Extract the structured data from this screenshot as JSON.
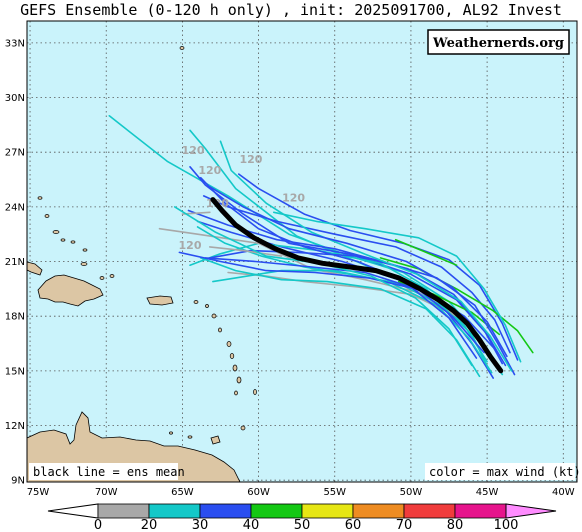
{
  "title": "GEFS Ensemble (0-120 h only) , init: 2025091700, AL92 Invest",
  "watermark": "Weathernerds.org",
  "legend_left": "black line = ens mean",
  "legend_right": "color = max wind (kt)",
  "lat_labels": [
    "33N",
    "30N",
    "27N",
    "24N",
    "21N",
    "18N",
    "15N",
    "12N",
    "9N"
  ],
  "lon_labels": [
    "75W",
    "70W",
    "65W",
    "60W",
    "55W",
    "50W",
    "45W",
    "40W"
  ],
  "colorbar": {
    "ticks": [
      "0",
      "20",
      "30",
      "40",
      "50",
      "60",
      "70",
      "80",
      "100"
    ],
    "colors": [
      "#a8a8a8",
      "#14c8c8",
      "#2a4ef0",
      "#14c814",
      "#e6e614",
      "#ee8c22",
      "#f03c3c",
      "#e6148c",
      "#ff8cff"
    ]
  },
  "hour_labels": [
    "120",
    "120",
    "120",
    "120",
    "120",
    "120"
  ],
  "map_colors": {
    "ocean": "#caf3fb",
    "land": "#dcc6a4",
    "mean_track": "#000000"
  },
  "ensemble_mean_track": [
    [
      -44.1,
      15.0
    ],
    [
      -44.8,
      15.8
    ],
    [
      -45.5,
      16.7
    ],
    [
      -46.3,
      17.6
    ],
    [
      -47.2,
      18.3
    ],
    [
      -48.2,
      18.9
    ],
    [
      -49.4,
      19.5
    ],
    [
      -50.8,
      20.1
    ],
    [
      -52.3,
      20.5
    ],
    [
      -54.0,
      20.7
    ],
    [
      -55.8,
      20.9
    ],
    [
      -57.4,
      21.2
    ],
    [
      -58.9,
      21.7
    ],
    [
      -60.3,
      22.3
    ],
    [
      -61.5,
      23.0
    ],
    [
      -62.4,
      23.8
    ],
    [
      -63.0,
      24.4
    ]
  ]
}
